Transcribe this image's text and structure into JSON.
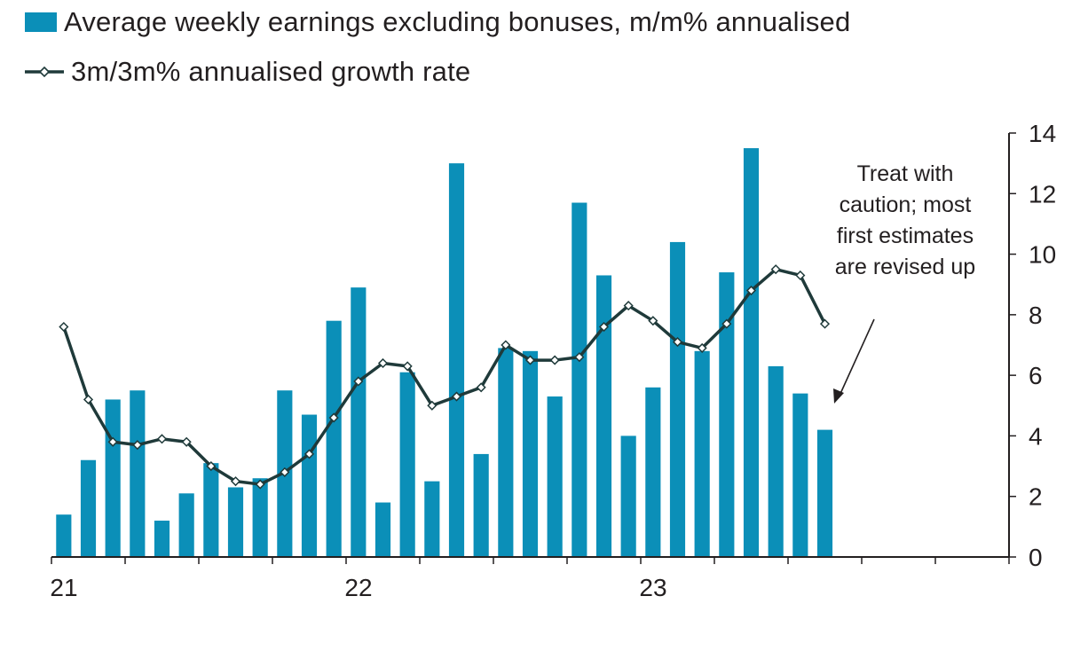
{
  "colors": {
    "bar": "#0b8fb8",
    "line": "#1f3a3a",
    "axis": "#231f20"
  },
  "legend": {
    "bar_label": "Average weekly earnings excluding bonuses, m/m% annualised",
    "line_label": "3m/3m% annualised growth rate"
  },
  "chart_data": {
    "type": "bar",
    "title": "",
    "xlabel": "",
    "ylabel": "",
    "ylim": [
      0,
      14
    ],
    "yticks": [
      "0",
      "2",
      "4",
      "6",
      "8",
      "10",
      "12",
      "14"
    ],
    "x_year_labels": [
      "21",
      "22",
      "23"
    ],
    "series": [
      {
        "name": "Average weekly earnings excluding bonuses, m/m% annualised",
        "kind": "bar",
        "values": [
          1.4,
          3.2,
          5.2,
          5.5,
          1.2,
          2.1,
          3.1,
          2.3,
          2.6,
          5.5,
          4.7,
          7.8,
          8.9,
          1.8,
          6.1,
          2.5,
          13.0,
          3.4,
          6.9,
          6.8,
          5.3,
          11.7,
          9.3,
          4.0,
          5.6,
          10.4,
          6.8,
          9.4,
          13.5,
          6.3,
          5.4,
          4.2
        ]
      },
      {
        "name": "3m/3m% annualised growth rate",
        "kind": "line",
        "values": [
          7.6,
          5.2,
          3.8,
          3.7,
          3.9,
          3.8,
          3.0,
          2.5,
          2.4,
          2.8,
          3.4,
          4.6,
          5.8,
          6.4,
          6.3,
          5.0,
          5.3,
          5.6,
          7.0,
          6.5,
          6.5,
          6.6,
          7.6,
          8.3,
          7.8,
          7.1,
          6.9,
          7.7,
          8.8,
          9.5,
          9.3,
          7.7
        ]
      }
    ],
    "annotation": {
      "lines": [
        "Treat with",
        "caution; most",
        "first estimates",
        "are revised up"
      ]
    }
  }
}
